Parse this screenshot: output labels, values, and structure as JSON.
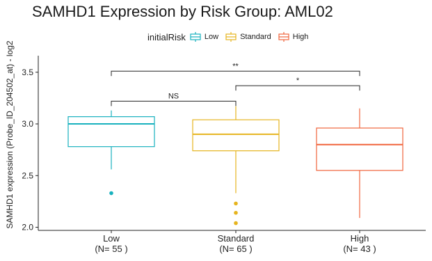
{
  "chart_data": {
    "type": "box",
    "title": "SAMHD1 Expression by Risk Group: AML02",
    "ylabel": "SAMHD1 expression (Probe_ID_204502_at) - log2",
    "xlabel": "",
    "ylim": [
      1.97,
      3.66
    ],
    "yticks": [
      "2.0",
      "2.5",
      "3.0",
      "3.5"
    ],
    "grid": false,
    "legend": {
      "title": "initialRisk",
      "position": "top",
      "entries": [
        "Low",
        "Standard",
        "High"
      ]
    },
    "categories": [
      "Low",
      "Standard",
      "High"
    ],
    "category_counts": [
      "(N= 55 )",
      "(N= 65 )",
      "(N= 43 )"
    ],
    "colors": [
      "#17B1BE",
      "#E6B41E",
      "#F0643C"
    ],
    "boxes": [
      {
        "name": "Low",
        "whisker_low": 2.56,
        "q1": 2.78,
        "median": 3.0,
        "q3": 3.07,
        "whisker_high": 3.13,
        "outliers": [
          2.33
        ]
      },
      {
        "name": "Standard",
        "whisker_low": 2.33,
        "q1": 2.74,
        "median": 2.9,
        "q3": 3.04,
        "whisker_high": 3.17,
        "outliers": [
          2.23,
          2.14,
          2.04
        ]
      },
      {
        "name": "High",
        "whisker_low": 2.09,
        "q1": 2.55,
        "median": 2.8,
        "q3": 2.96,
        "whisker_high": 3.15,
        "outliers": []
      }
    ],
    "comparisons": [
      {
        "from": "Low",
        "to": "High",
        "y": 3.51,
        "label": "**"
      },
      {
        "from": "Low",
        "to": "Standard",
        "y": 3.22,
        "label": "NS"
      },
      {
        "from": "Standard",
        "to": "High",
        "y": 3.37,
        "label": "*"
      }
    ]
  }
}
